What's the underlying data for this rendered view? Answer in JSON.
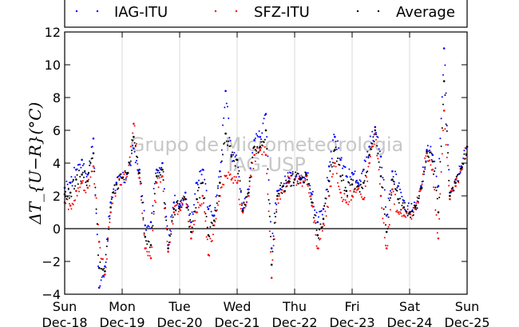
{
  "chart_data": {
    "type": "scatter",
    "ylabel": "ΔT_{U−R}(°C)",
    "ylim": [
      -4,
      12
    ],
    "yticks": [
      -4,
      -2,
      0,
      2,
      4,
      6,
      8,
      10,
      12
    ],
    "xlim": [
      0,
      7
    ],
    "xticks": [
      {
        "x": 0,
        "day": "Sun",
        "date": "Dec-18"
      },
      {
        "x": 1,
        "day": "Mon",
        "date": "Dec-19"
      },
      {
        "x": 2,
        "day": "Tue",
        "date": "Dec-20"
      },
      {
        "x": 3,
        "day": "Wed",
        "date": "Dec-21"
      },
      {
        "x": 4,
        "day": "Thu",
        "date": "Dec-22"
      },
      {
        "x": 5,
        "day": "Fri",
        "date": "Dec-23"
      },
      {
        "x": 6,
        "day": "Sat",
        "date": "Dec-24"
      },
      {
        "x": 7,
        "day": "Sun",
        "date": "Dec-25"
      }
    ],
    "grid": "vertical",
    "reference_line_y": 0,
    "legend_position": "top",
    "watermark": [
      "Grupo de Micrometeorologia",
      "IAG-USP"
    ],
    "series": [
      {
        "name": "IAG-ITU",
        "color": "#0000ff",
        "x": [
          0,
          0.1,
          0.2,
          0.3,
          0.4,
          0.5,
          0.6,
          0.7,
          0.8,
          0.9,
          1,
          1.1,
          1.2,
          1.3,
          1.4,
          1.5,
          1.6,
          1.7,
          1.8,
          1.9,
          2,
          2.1,
          2.2,
          2.3,
          2.4,
          2.5,
          2.6,
          2.7,
          2.8,
          2.9,
          3,
          3.1,
          3.2,
          3.3,
          3.4,
          3.5,
          3.6,
          3.7,
          3.8,
          3.9,
          4,
          4.1,
          4.2,
          4.3,
          4.4,
          4.5,
          4.6,
          4.7,
          4.8,
          4.9,
          5,
          5.1,
          5.2,
          5.3,
          5.4,
          5.5,
          5.6,
          5.7,
          5.8,
          5.9,
          6,
          6.1,
          6.2,
          6.3,
          6.4,
          6.5,
          6.6,
          6.7,
          6.8,
          6.9,
          7
        ],
        "y": [
          2.5,
          2.8,
          3.6,
          4.2,
          3.3,
          5.5,
          -3.6,
          -2.3,
          1.6,
          2.8,
          3.1,
          3.4,
          4.9,
          3.6,
          0.2,
          0.4,
          3.6,
          4.0,
          -1.0,
          1.6,
          1.5,
          2.2,
          0.4,
          2.8,
          3.6,
          1.2,
          0.8,
          3.5,
          8.4,
          4.5,
          4.2,
          1.2,
          2.4,
          5.4,
          5.6,
          7.0,
          -1.2,
          2.3,
          2.6,
          3.1,
          3.0,
          3.1,
          3.4,
          2.1,
          0.4,
          1.2,
          3.8,
          5.6,
          4.2,
          3.2,
          3.4,
          2.8,
          3.6,
          5.0,
          6.2,
          4.4,
          0.8,
          3.5,
          2.6,
          1.7,
          1.0,
          1.4,
          2.6,
          4.8,
          4.5,
          2.6,
          11.0,
          2.2,
          3.0,
          3.8,
          5.0
        ]
      },
      {
        "name": "SFZ-ITU",
        "color": "#ff0000",
        "x": [
          0,
          0.1,
          0.2,
          0.3,
          0.4,
          0.5,
          0.6,
          0.7,
          0.8,
          0.9,
          1,
          1.1,
          1.2,
          1.3,
          1.4,
          1.5,
          1.6,
          1.7,
          1.8,
          1.9,
          2,
          2.1,
          2.2,
          2.3,
          2.4,
          2.5,
          2.6,
          2.7,
          2.8,
          2.9,
          3,
          3.1,
          3.2,
          3.3,
          3.4,
          3.5,
          3.6,
          3.7,
          3.8,
          3.9,
          4,
          4.1,
          4.2,
          4.3,
          4.4,
          4.5,
          4.6,
          4.7,
          4.8,
          4.9,
          5,
          5.1,
          5.2,
          5.3,
          5.4,
          5.5,
          5.6,
          5.7,
          5.8,
          5.9,
          6,
          6.1,
          6.2,
          6.3,
          6.4,
          6.5,
          6.6,
          6.7,
          6.8,
          6.9,
          7
        ],
        "y": [
          1.6,
          1.4,
          2.3,
          2.8,
          2.5,
          3.8,
          -0.8,
          -2.8,
          1.0,
          2.7,
          3.1,
          3.4,
          6.4,
          3.1,
          -1.2,
          -1.8,
          2.8,
          3.2,
          -1.4,
          1.0,
          1.2,
          1.8,
          -0.6,
          1.0,
          2.0,
          -1.6,
          0.2,
          2.0,
          3.2,
          3.0,
          2.8,
          1.0,
          2.0,
          4.5,
          4.8,
          4.5,
          -3.0,
          1.8,
          2.6,
          2.8,
          3.0,
          2.8,
          3.2,
          1.4,
          -1.2,
          0.3,
          2.0,
          4.0,
          2.2,
          1.6,
          2.0,
          2.4,
          1.8,
          4.0,
          5.8,
          2.0,
          -1.2,
          2.4,
          1.0,
          0.8,
          0.9,
          1.2,
          2.4,
          4.6,
          3.6,
          -0.6,
          7.2,
          1.8,
          2.6,
          3.6,
          5.0
        ]
      },
      {
        "name": "Average",
        "color": "#000000",
        "x": [
          0,
          0.1,
          0.2,
          0.3,
          0.4,
          0.5,
          0.6,
          0.7,
          0.8,
          0.9,
          1,
          1.1,
          1.2,
          1.3,
          1.4,
          1.5,
          1.6,
          1.7,
          1.8,
          1.9,
          2,
          2.1,
          2.2,
          2.3,
          2.4,
          2.5,
          2.6,
          2.7,
          2.8,
          2.9,
          3,
          3.1,
          3.2,
          3.3,
          3.4,
          3.5,
          3.6,
          3.7,
          3.8,
          3.9,
          4,
          4.1,
          4.2,
          4.3,
          4.4,
          4.5,
          4.6,
          4.7,
          4.8,
          4.9,
          5,
          5.1,
          5.2,
          5.3,
          5.4,
          5.5,
          5.6,
          5.7,
          5.8,
          5.9,
          6,
          6.1,
          6.2,
          6.3,
          6.4,
          6.5,
          6.6,
          6.7,
          6.8,
          6.9,
          7
        ],
        "y": [
          2.1,
          2.2,
          3.0,
          3.3,
          2.9,
          4.6,
          -2.4,
          -2.6,
          1.3,
          2.7,
          3.1,
          3.4,
          5.6,
          3.4,
          -0.5,
          -1.0,
          3.2,
          3.6,
          -1.2,
          1.2,
          1.3,
          1.8,
          -0.2,
          1.8,
          2.8,
          -0.4,
          0.5,
          2.8,
          5.8,
          4.4,
          4.2,
          1.1,
          2.2,
          5.0,
          5.0,
          6.0,
          -2.2,
          2.0,
          2.6,
          2.9,
          3.0,
          3.0,
          3.3,
          1.6,
          -0.4,
          0.6,
          2.9,
          4.8,
          3.2,
          2.3,
          2.7,
          2.6,
          2.8,
          4.5,
          6.0,
          3.2,
          -0.2,
          3.0,
          1.8,
          1.3,
          1.0,
          1.3,
          2.5,
          4.7,
          4.1,
          1.0,
          9.0,
          2.0,
          2.8,
          3.7,
          5.0
        ]
      }
    ]
  }
}
